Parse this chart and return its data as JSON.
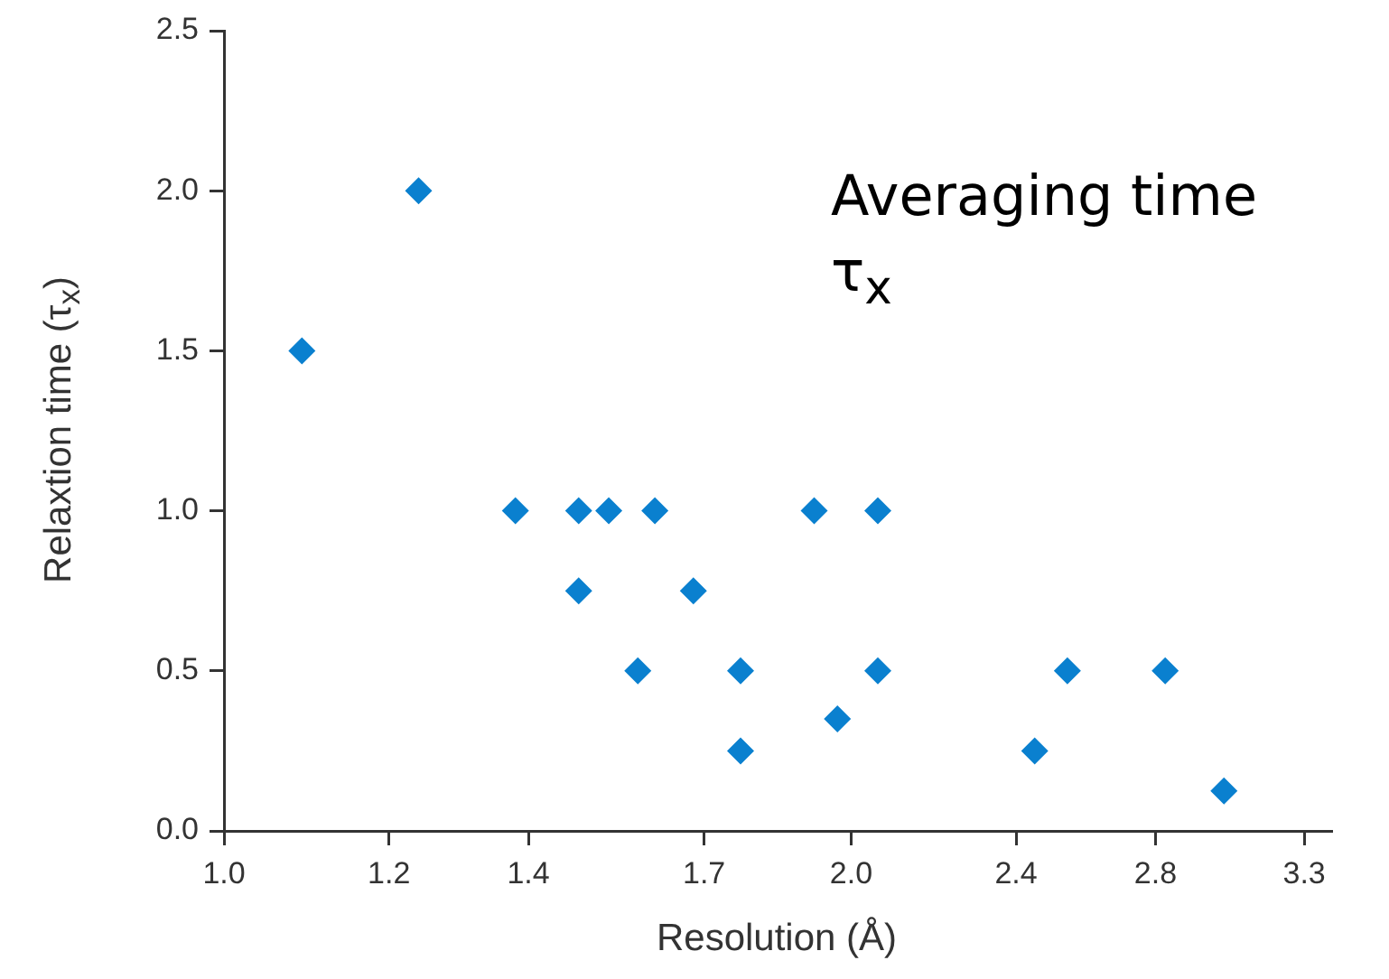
{
  "chart_data": {
    "type": "scatter",
    "xlabel": "Resolution (Å)",
    "ylabel": "Relaxtion time (τ$_{x}$)",
    "annotations": [
      "Averaging time τ$_{x}$"
    ],
    "log": "x",
    "marker": "diamond",
    "grid": false,
    "xlim": [
      1.0,
      3.4
    ],
    "xticks": [
      {
        "value": 1,
        "label": "1.0"
      },
      1.2,
      1.4,
      1.7,
      {
        "value": 2,
        "label": "2.0"
      },
      2.4,
      2.8,
      3.3
    ],
    "ylim": [
      0,
      2.5
    ],
    "yticks": [
      {
        "value": 0,
        "label": "0.0"
      },
      0.5,
      {
        "value": 1,
        "label": "1.0"
      },
      1.5,
      {
        "value": 2,
        "label": "2.0"
      },
      2.5
    ],
    "series": [
      {
        "color": "#0a80cf",
        "x": [
          1.09,
          1.24,
          1.38,
          1.48,
          1.48,
          1.53,
          1.58,
          1.61,
          1.68,
          1.77,
          1.77,
          1.92,
          1.97,
          2.06,
          2.06,
          2.45,
          2.54,
          2.83,
          3.02
        ],
        "values": [
          1.5,
          2.0,
          1.0,
          1.0,
          0.75,
          1.0,
          0.5,
          1.0,
          0.75,
          0.5,
          0.25,
          1.0,
          0.35,
          1.0,
          0.5,
          0.25,
          0.5,
          0.5,
          0.125
        ]
      }
    ]
  }
}
